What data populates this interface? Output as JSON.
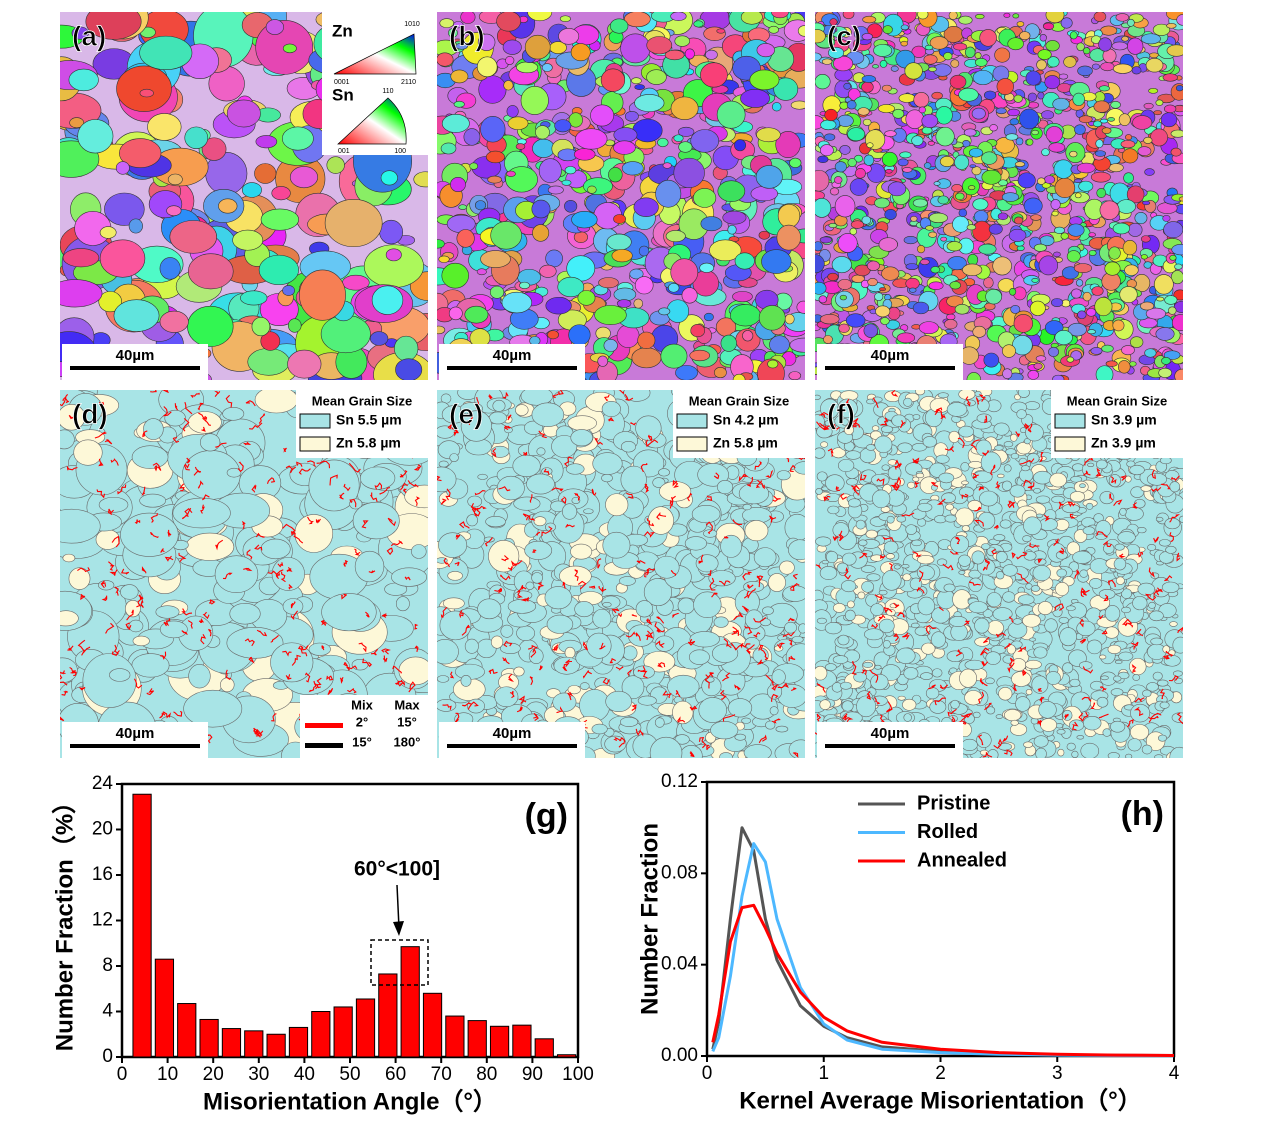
{
  "maps": [
    {
      "label": "(a)",
      "scale_bar": "40µm"
    },
    {
      "label": "(b)",
      "scale_bar": "40µm"
    },
    {
      "label": "(c)",
      "scale_bar": "40µm"
    },
    {
      "label": "(d)",
      "scale_bar": "40µm"
    },
    {
      "label": "(e)",
      "scale_bar": "40µm"
    },
    {
      "label": "(f)",
      "scale_bar": "40µm"
    }
  ],
  "ipf_legend": {
    "zn": "Zn",
    "zn_corners": [
      "0001",
      "2110",
      "1010"
    ],
    "sn": "Sn",
    "sn_corners": [
      "001",
      "100",
      "110"
    ]
  },
  "grain_size_legends": [
    {
      "title": "Mean Grain Size",
      "sn": "Sn 5.5 µm",
      "zn": "Zn 5.8 µm"
    },
    {
      "title": "Mean Grain Size",
      "sn": "Sn 4.2 µm",
      "zn": "Zn 5.8 µm"
    },
    {
      "title": "Mean Grain Size",
      "sn": "Sn 3.9 µm",
      "zn": "Zn 3.9 µm"
    }
  ],
  "boundary_legend": {
    "min": "Mix",
    "max": "Max",
    "rows": [
      [
        "2°",
        "15°"
      ],
      [
        "15°",
        "180°"
      ]
    ]
  },
  "chart_data": [
    {
      "type": "bar",
      "label": "(g)",
      "xlabel": "Misorientation Angle（°）",
      "ylabel": "Number Fraction（%）",
      "annotation": "60°<100]",
      "color": "#ff0000",
      "x": [
        4.4,
        9.3,
        14.2,
        19.1,
        24,
        28.9,
        33.8,
        38.7,
        43.6,
        48.5,
        53.4,
        58.3,
        63.2,
        68.1,
        73,
        77.9,
        82.8,
        87.7,
        92.6,
        97.5
      ],
      "values": [
        23.1,
        8.6,
        4.7,
        3.3,
        2.5,
        2.3,
        2.0,
        2.6,
        4.0,
        4.4,
        5.1,
        7.3,
        9.7,
        5.6,
        3.6,
        3.2,
        2.7,
        2.8,
        1.6,
        0.2
      ],
      "xlim": [
        0,
        100
      ],
      "xticks": [
        0,
        10,
        20,
        30,
        40,
        50,
        60,
        70,
        80,
        90,
        100
      ],
      "ylim": [
        0,
        24
      ],
      "yticks": [
        0,
        4,
        8,
        12,
        16,
        20,
        24
      ]
    },
    {
      "type": "line",
      "label": "(h)",
      "xlabel": "Kernel Average Misorientation（°）",
      "ylabel": "Number Fraction",
      "x": [
        0.05,
        0.1,
        0.2,
        0.3,
        0.4,
        0.5,
        0.6,
        0.8,
        1.0,
        1.2,
        1.5,
        2,
        2.5,
        3,
        3.5,
        4
      ],
      "series": [
        {
          "name": "Pristine",
          "color": "#555555",
          "values": [
            0.003,
            0.015,
            0.06,
            0.1,
            0.09,
            0.06,
            0.042,
            0.022,
            0.013,
            0.008,
            0.004,
            0.002,
            0.001,
            0.0005,
            0.0003,
            0.0002
          ]
        },
        {
          "name": "Rolled",
          "color": "#4db8ff",
          "values": [
            0.002,
            0.008,
            0.035,
            0.07,
            0.093,
            0.085,
            0.06,
            0.03,
            0.014,
            0.007,
            0.003,
            0.0015,
            0.0008,
            0.0004,
            0.0002,
            0.0001
          ]
        },
        {
          "name": "Annealed",
          "color": "#ff0000",
          "values": [
            0.006,
            0.018,
            0.05,
            0.065,
            0.066,
            0.056,
            0.045,
            0.028,
            0.017,
            0.011,
            0.006,
            0.003,
            0.0015,
            0.0008,
            0.0004,
            0.0002
          ]
        }
      ],
      "xlim": [
        0,
        4
      ],
      "xticks": [
        0,
        1,
        2,
        3,
        4
      ],
      "ylim": [
        0,
        0.12
      ],
      "yticks": [
        {
          "value": 0,
          "label": "0.00"
        },
        {
          "value": 0.04,
          "label": "0.04"
        },
        {
          "value": 0.08,
          "label": "0.08"
        },
        {
          "value": 0.12,
          "label": "0.12"
        }
      ]
    }
  ]
}
